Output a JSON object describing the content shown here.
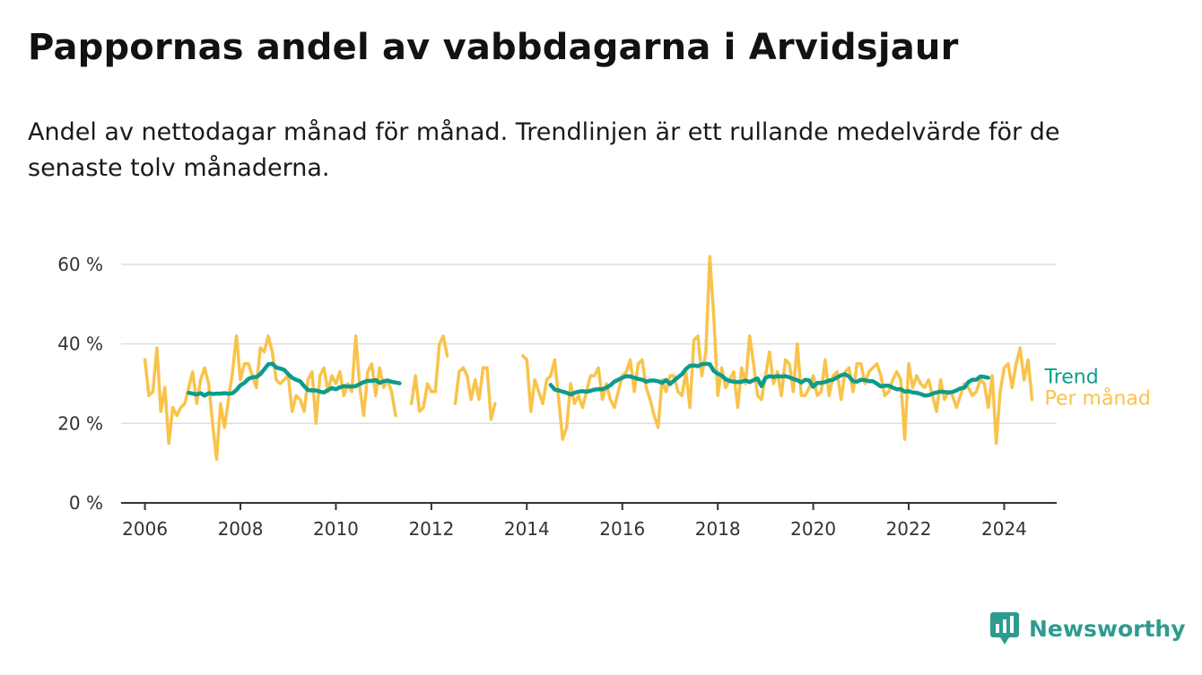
{
  "title": "Pappornas andel av vabbdagarna i Arvidsjaur",
  "subtitle": "Andel av nettodagar månad för månad. Trendlinjen är ett rullande medelvärde för de senaste tolv månaderna.",
  "brand": {
    "name": "Newsworthy",
    "color": "#2d9c8f"
  },
  "colors": {
    "trend": "#0d9c8c",
    "monthly": "#f9c34b",
    "grid": "#dddddd",
    "axis": "#333333"
  },
  "chart_data": {
    "type": "line",
    "title": "Pappornas andel av vabbdagarna i Arvidsjaur",
    "xlabel": "",
    "ylabel": "",
    "xlim": [
      2005.5,
      2025.1
    ],
    "ylim": [
      0,
      60
    ],
    "y_ticks": [
      0,
      20,
      40,
      60
    ],
    "y_tick_labels": [
      "0 %",
      "20 %",
      "40 %",
      "60 %"
    ],
    "x_ticks": [
      2006,
      2008,
      2010,
      2012,
      2014,
      2016,
      2018,
      2020,
      2022,
      2024
    ],
    "x_tick_labels": [
      "2006",
      "2008",
      "2010",
      "2012",
      "2014",
      "2016",
      "2018",
      "2020",
      "2022",
      "2024"
    ],
    "grid": "horizontal",
    "legend": "right, at line ends",
    "series": [
      {
        "name": "Per månad",
        "color": "#f9c34b",
        "segments": [
          {
            "start": 2006.0,
            "values": [
              36,
              27,
              28,
              39,
              23,
              29,
              15,
              24,
              22,
              24,
              25,
              29,
              33,
              25,
              31,
              34,
              30,
              20,
              11,
              25,
              19,
              26,
              33,
              42,
              31,
              35,
              35,
              32,
              29,
              39,
              38,
              42,
              38,
              31,
              30,
              31,
              32,
              23,
              27,
              26,
              23,
              31,
              33,
              20,
              32,
              34,
              28,
              32,
              30,
              33,
              27,
              30,
              28,
              42,
              29,
              22,
              33,
              35,
              27,
              34,
              29,
              31,
              28,
              22
            ]
          },
          {
            "start": 2011.5833,
            "values": [
              25,
              32,
              23,
              24,
              30,
              28,
              28,
              40,
              42,
              37
            ]
          },
          {
            "start": 2012.5,
            "values": [
              25,
              33,
              34,
              32,
              26,
              31,
              26,
              34,
              34,
              21,
              25
            ]
          },
          {
            "start": 2013.9167,
            "values": [
              37,
              36,
              23,
              31,
              28,
              25,
              31,
              32,
              36,
              26,
              16,
              19,
              30,
              25,
              27,
              24,
              28,
              32,
              32,
              34,
              26,
              30,
              26,
              24,
              28,
              32,
              33,
              36,
              28,
              35,
              36,
              29,
              26,
              22,
              19,
              31,
              28,
              32,
              32,
              28,
              27,
              33,
              24,
              41,
              42,
              32,
              38,
              62,
              47,
              27,
              34,
              29,
              31,
              33,
              24,
              34,
              30,
              42,
              35,
              27,
              26,
              32,
              38,
              30,
              33,
              27,
              36,
              35,
              28,
              40,
              27,
              27,
              29,
              32,
              27,
              28,
              36,
              27,
              32,
              33,
              26,
              33,
              34,
              28,
              35,
              35,
              30,
              33,
              34,
              35,
              32,
              27,
              28,
              31,
              33,
              31,
              16,
              35,
              29,
              32,
              30,
              29,
              31,
              27,
              23,
              31,
              26,
              28,
              27,
              24,
              27,
              30,
              29,
              27,
              28,
              31,
              30,
              24,
              32,
              15,
              28,
              34,
              35,
              29,
              35,
              39,
              31,
              36,
              26
            ]
          }
        ]
      },
      {
        "name": "Trend",
        "color": "#0d9c8c",
        "segments": [
          {
            "start": 2006.9167,
            "values": [
              27.7,
              27.5,
              27.3,
              27.6,
              27.0,
              27.6,
              27.4,
              27.5,
              27.5,
              27.6,
              27.5,
              27.6,
              28.4,
              29.6,
              30.2,
              31.2,
              31.6,
              31.7,
              32.4,
              33.6,
              34.9,
              35.0,
              34.1,
              33.8,
              33.5,
              32.4,
              31.5,
              31.0,
              30.6,
              29.4,
              28.4,
              28.3,
              28.3,
              28.0,
              27.8,
              28.4,
              28.9,
              28.6,
              29.1,
              29.4,
              29.3,
              29.3,
              29.4,
              29.9,
              30.4,
              30.7,
              30.7,
              30.9,
              30.2,
              30.6,
              30.8,
              30.5,
              30.3,
              30.1
            ]
          },
          {
            "start": 2014.5,
            "values": [
              29.7,
              28.5,
              28.3,
              28.0,
              27.7,
              27.3,
              27.7,
              28.0,
              28.1,
              28.0,
              28.2,
              28.5,
              28.6,
              28.6,
              29.0,
              29.6,
              30.5,
              31.0,
              31.5,
              31.9,
              31.8,
              31.5,
              31.2,
              31.0,
              30.5,
              30.8,
              30.8,
              30.6,
              30.2,
              30.9,
              29.9,
              30.8,
              31.6,
              32.4,
              33.7,
              34.5,
              34.6,
              34.4,
              34.9,
              35.0,
              34.9,
              33.2,
              32.5,
              32.0,
              31.1,
              30.7,
              30.5,
              30.4,
              30.5,
              30.8,
              30.4,
              30.9,
              31.3,
              29.4,
              31.5,
              31.9,
              31.7,
              31.9,
              31.8,
              31.9,
              31.6,
              31.2,
              30.9,
              30.3,
              31.0,
              30.8,
              29.2,
              30.2,
              30.2,
              30.4,
              30.8,
              31.0,
              31.6,
              32.1,
              32.4,
              31.8,
              30.6,
              30.5,
              31.0,
              30.9,
              30.6,
              30.6,
              30.0,
              29.3,
              29.5,
              29.5,
              29.0,
              28.6,
              28.6,
              28.0,
              28.1,
              27.8,
              27.7,
              27.4,
              27.0,
              27.1,
              27.5,
              27.8,
              28.0,
              27.9,
              27.8,
              27.9,
              28.3,
              28.8,
              29.0,
              30.4,
              31.0,
              31.0,
              31.8,
              31.7,
              31.5
            ]
          }
        ]
      }
    ]
  }
}
